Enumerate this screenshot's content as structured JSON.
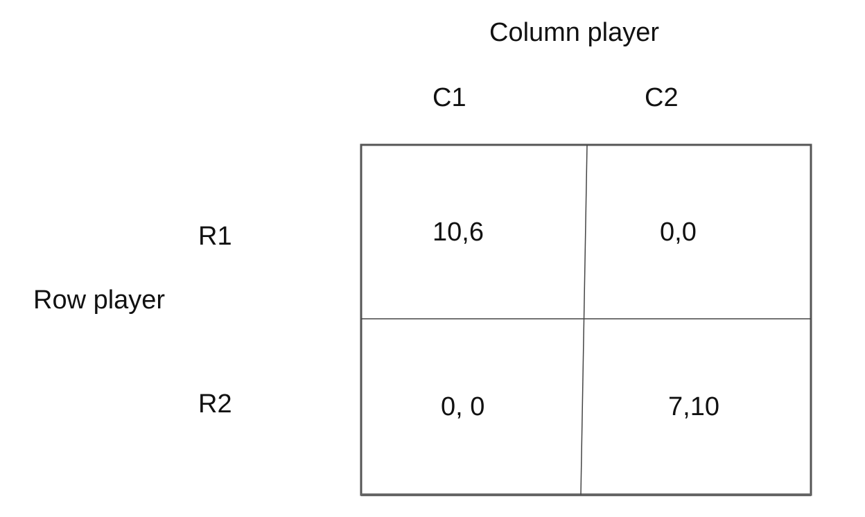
{
  "column_player": {
    "title": "Column player",
    "strategies": [
      "C1",
      "C2"
    ]
  },
  "row_player": {
    "title": "Row player",
    "strategies": [
      "R1",
      "R2"
    ]
  },
  "payoffs": [
    [
      "10,6",
      "0,0"
    ],
    [
      "0, 0",
      "7,10"
    ]
  ],
  "colors": {
    "border": "#555555",
    "inner_line": "#444444",
    "text": "#111111"
  }
}
